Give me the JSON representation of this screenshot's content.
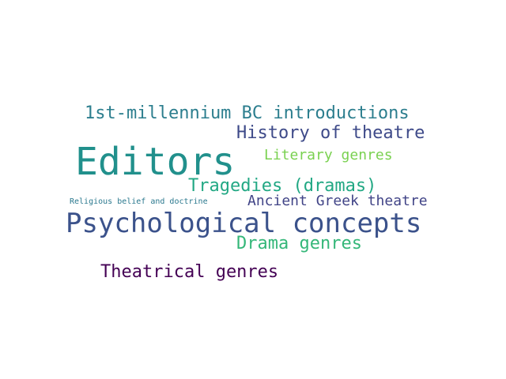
{
  "words": [
    {
      "id": "editors",
      "text": "Editors",
      "color": "#21908c"
    },
    {
      "id": "psych",
      "text": "Psychological concepts",
      "color": "#3b528b"
    },
    {
      "id": "millennium",
      "text": "1st-millennium BC introductions",
      "color": "#2c7e8e"
    },
    {
      "id": "history",
      "text": "History of theatre",
      "color": "#3e4a89"
    },
    {
      "id": "literary",
      "text": "Literary genres",
      "color": "#7ad151"
    },
    {
      "id": "tragedies",
      "text": "Tragedies (dramas)",
      "color": "#22a884"
    },
    {
      "id": "religious",
      "text": "Religious belief and doctrine",
      "color": "#2a788e"
    },
    {
      "id": "ancient",
      "text": "Ancient Greek theatre",
      "color": "#414487"
    },
    {
      "id": "drama",
      "text": "Drama genres",
      "color": "#35b779"
    },
    {
      "id": "theatrical",
      "text": "Theatrical genres",
      "color": "#440154"
    }
  ]
}
